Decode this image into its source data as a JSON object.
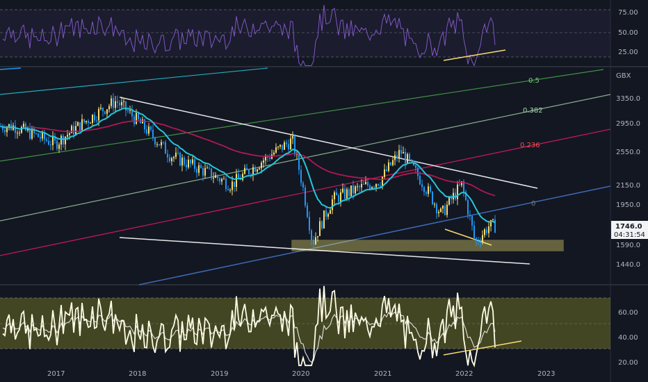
{
  "colors": {
    "background": "#131722",
    "axis_text": "#b2b5be",
    "rsi_purple": "#7e57c2",
    "ema_teal": "#26c6da",
    "sma_red": "#c2185b",
    "candle_up": "#f7dc6f",
    "candle_down": "#2196f3",
    "trendline": "#ffffff",
    "support_zone": "#fff176",
    "lower_osc": "#ffffff"
  },
  "top_panel": {
    "y_ticks": [
      "75.00",
      "50.00",
      "25.00"
    ]
  },
  "main_panel": {
    "currency": "GBX",
    "y_ticks": [
      "3350.0",
      "2950.0",
      "2550.0",
      "2150.0",
      "1950.0",
      "1590.0",
      "1440.0"
    ],
    "last_price": "1746.0",
    "countdown": "04:31:54",
    "fib_levels": [
      {
        "label": "0.5",
        "color": "#81c784"
      },
      {
        "label": "0.382",
        "color": "#a5d6a7"
      },
      {
        "label": "0.236",
        "color": "#ef5350"
      },
      {
        "label": "0",
        "color": "#787b86"
      }
    ]
  },
  "bottom_panel": {
    "y_ticks": [
      "60.00",
      "40.00",
      "20.00"
    ]
  },
  "x_axis": {
    "labels": [
      "2017",
      "2018",
      "2019",
      "2020",
      "2021",
      "2022",
      "2023"
    ]
  },
  "chart_data": {
    "type": "line",
    "price_key_points": {
      "x": [
        "2016-07",
        "2017-01",
        "2017-10",
        "2018-06",
        "2019-03",
        "2019-12",
        "2020-03",
        "2020-06",
        "2021-01",
        "2021-04",
        "2021-10",
        "2022-01",
        "2022-03",
        "2022-05"
      ],
      "close": [
        2900,
        2650,
        3300,
        2500,
        2150,
        2700,
        1600,
        2000,
        2200,
        2550,
        1850,
        2150,
        1600,
        1746
      ]
    },
    "last_close": 1746,
    "support_zone": [
      1560,
      1640
    ]
  }
}
